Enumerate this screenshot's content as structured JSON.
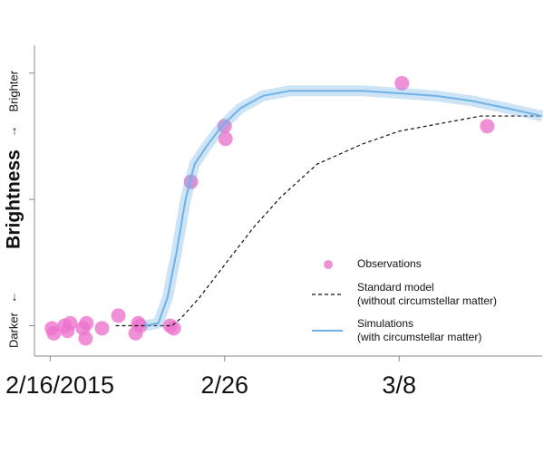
{
  "chart_data": {
    "type": "line",
    "ylabel": "Brightness",
    "y_arrows": [
      "↑",
      "↓"
    ],
    "xlim": [
      -0.9,
      28.2
    ],
    "xticks": [
      {
        "value": 0,
        "label": "2/16/2015"
      },
      {
        "value": 10,
        "label": "2/26"
      },
      {
        "value": 20,
        "label": "3/8"
      }
    ],
    "ylim": [
      -0.12,
      1.11
    ],
    "yticks": [
      {
        "value": 0,
        "label": "Darker"
      },
      {
        "value": 0.5
      },
      {
        "value": 1,
        "label": "Brighter"
      }
    ],
    "legend": "lower right",
    "series": [
      {
        "name": "Observations",
        "kind": "scatter",
        "color": "#ec74cc",
        "x": [
          0.1,
          0.21,
          0.83,
          0.99,
          1.15,
          1.88,
          2.03,
          2.08,
          2.97,
          3.91,
          4.9,
          5.05,
          5.16,
          6.88,
          7.08,
          8.07,
          10.0,
          10.05,
          20.16,
          25.05
        ],
        "values": [
          -0.01,
          -0.03,
          0.0,
          -0.02,
          0.01,
          -0.01,
          -0.05,
          0.01,
          -0.01,
          0.04,
          -0.03,
          0.01,
          0.0,
          0.0,
          -0.01,
          0.57,
          0.79,
          0.74,
          0.96,
          0.79
        ]
      },
      {
        "name": "Standard model",
        "note": "(without circumstellar matter)",
        "kind": "line",
        "dash": true,
        "color": "#111111",
        "x": [
          3.75,
          6.98,
          7.5,
          8.54,
          10.1,
          11.67,
          13.23,
          15.31,
          17.92,
          20.0,
          22.34,
          24.69,
          28.2
        ],
        "values": [
          0,
          0,
          0.03,
          0.11,
          0.25,
          0.39,
          0.51,
          0.64,
          0.72,
          0.77,
          0.8,
          0.83,
          0.83
        ]
      },
      {
        "name": "Simulations",
        "note": "(with circumstellar matter)",
        "kind": "line",
        "band": true,
        "color": "#6fb2e6",
        "x": [
          5.42,
          6.2,
          6.72,
          7.24,
          7.76,
          8.28,
          8.96,
          9.84,
          10.89,
          12.19,
          13.75,
          15.83,
          17.92,
          20.0,
          22.08,
          24.17,
          26.25,
          28.2
        ],
        "values": [
          0,
          0.01,
          0.11,
          0.29,
          0.5,
          0.64,
          0.71,
          0.79,
          0.86,
          0.91,
          0.93,
          0.93,
          0.93,
          0.92,
          0.91,
          0.89,
          0.86,
          0.83
        ]
      }
    ]
  }
}
